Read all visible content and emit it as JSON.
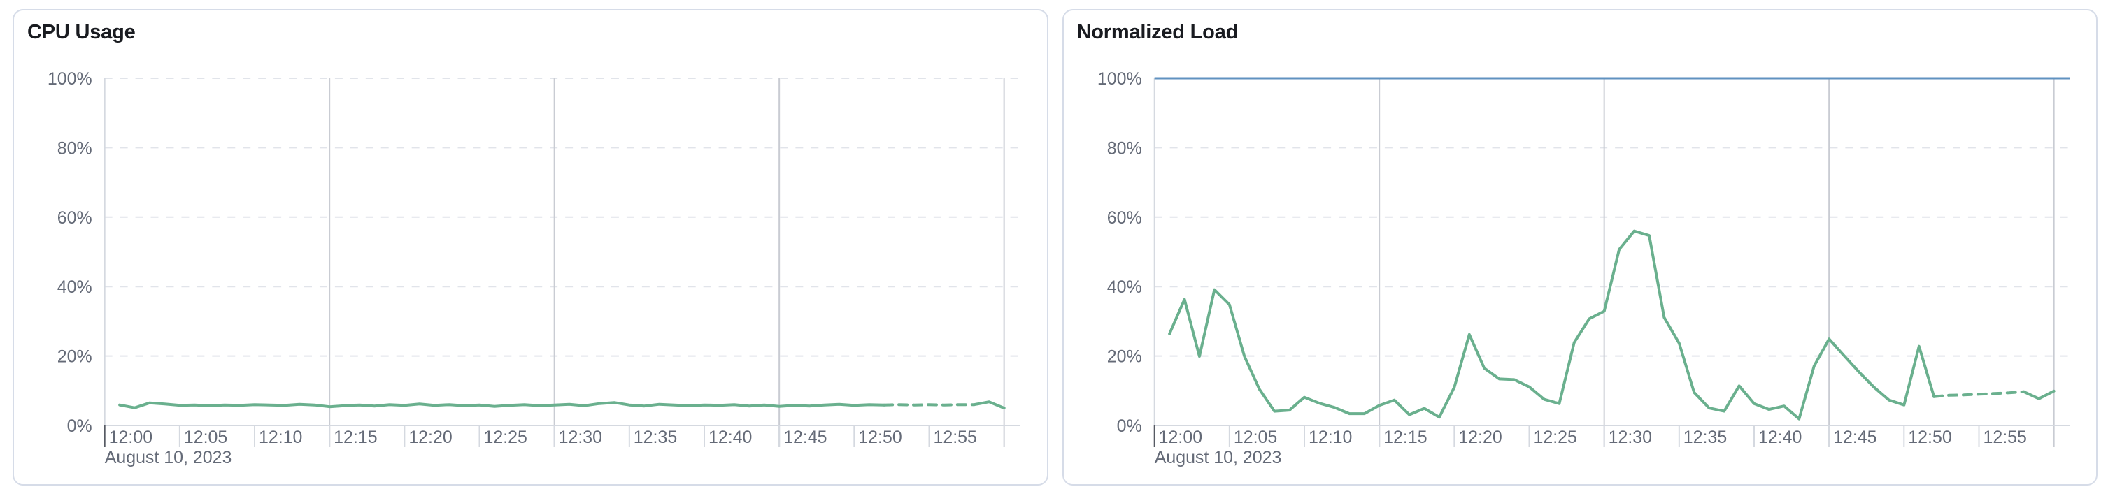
{
  "style": {
    "page_background": "#ffffff",
    "card_border": "#d6dce8",
    "title_color": "#191b20",
    "label_color": "#646a77",
    "gridline_horizontal": "#e1e4ea",
    "gridline_vertical": "#c9ccd3",
    "axis_line": "#d5d9e0",
    "tick_mark": "#d5d9e0",
    "first_tick_mark": "#565a63",
    "series_green": "#6ab08e",
    "threshold_blue": "#6092c0"
  },
  "chart_data": [
    {
      "type": "line",
      "title": "CPU Usage",
      "date_label": "August 10, 2023",
      "y_unit": "%",
      "ylim": [
        0,
        100
      ],
      "y_tick_labels": [
        "0%",
        "20%",
        "40%",
        "60%",
        "80%",
        "100%"
      ],
      "x_tick_labels": [
        "12:00",
        "12:05",
        "12:10",
        "12:15",
        "12:20",
        "12:25",
        "12:30",
        "12:35",
        "12:40",
        "12:45",
        "12:50",
        "12:55"
      ],
      "x_tick_interval_minutes": 5,
      "vertical_gridline_minutes": [
        15,
        30,
        45,
        60
      ],
      "x_domain_minutes": [
        0,
        61
      ],
      "points_start_minute": 1,
      "point_interval_minutes": 1,
      "dashed_segment": {
        "from_minute": 52,
        "to_minute": 58,
        "note": "trailing buckets drawn dashed"
      },
      "series_name": "cpu-usage",
      "values": [
        5.9,
        5.1,
        6.5,
        6.2,
        5.8,
        5.9,
        5.7,
        5.9,
        5.8,
        6.0,
        5.9,
        5.8,
        6.1,
        5.9,
        5.4,
        5.7,
        5.9,
        5.6,
        6.0,
        5.8,
        6.2,
        5.8,
        6.0,
        5.7,
        5.9,
        5.5,
        5.8,
        6.0,
        5.7,
        5.9,
        6.1,
        5.7,
        6.3,
        6.6,
        5.9,
        5.6,
        6.1,
        5.9,
        5.7,
        5.9,
        5.8,
        6.0,
        5.6,
        5.9,
        5.5,
        5.8,
        5.6,
        5.9,
        6.1,
        5.8,
        6.0,
        5.9,
        6.0,
        5.9,
        6.0,
        5.9,
        6.0,
        6.0,
        6.8,
        5.0
      ]
    },
    {
      "type": "line",
      "title": "Normalized Load",
      "date_label": "August 10, 2023",
      "y_unit": "%",
      "ylim": [
        0,
        100
      ],
      "y_tick_labels": [
        "0%",
        "20%",
        "40%",
        "60%",
        "80%",
        "100%"
      ],
      "x_tick_labels": [
        "12:00",
        "12:05",
        "12:10",
        "12:15",
        "12:20",
        "12:25",
        "12:30",
        "12:35",
        "12:40",
        "12:45",
        "12:50",
        "12:55"
      ],
      "x_tick_interval_minutes": 5,
      "vertical_gridline_minutes": [
        15,
        30,
        45,
        60
      ],
      "x_domain_minutes": [
        0,
        61
      ],
      "points_start_minute": 1,
      "point_interval_minutes": 1,
      "dashed_segment": {
        "from_minute": 52,
        "to_minute": 58,
        "note": "trailing buckets drawn dashed"
      },
      "series_name": "normalized-load",
      "threshold_line": {
        "value": 100,
        "color": "#6092c0"
      },
      "values": [
        26.4,
        36.3,
        19.9,
        39.1,
        34.8,
        19.9,
        10.4,
        4.1,
        4.4,
        8.1,
        6.4,
        5.2,
        3.4,
        3.4,
        5.8,
        7.3,
        3.1,
        4.9,
        2.4,
        11.0,
        26.2,
        16.5,
        13.4,
        13.2,
        11.1,
        7.5,
        6.3,
        23.9,
        30.7,
        32.9,
        50.7,
        56.0,
        54.7,
        31.1,
        23.7,
        9.5,
        5.0,
        4.1,
        11.4,
        6.3,
        4.6,
        5.6,
        1.9,
        17.1,
        24.9,
        20.1,
        15.4,
        11.0,
        7.3,
        5.9,
        22.8,
        8.3,
        8.7,
        8.8,
        9.0,
        9.2,
        9.4,
        9.7,
        7.7,
        9.9
      ]
    }
  ]
}
